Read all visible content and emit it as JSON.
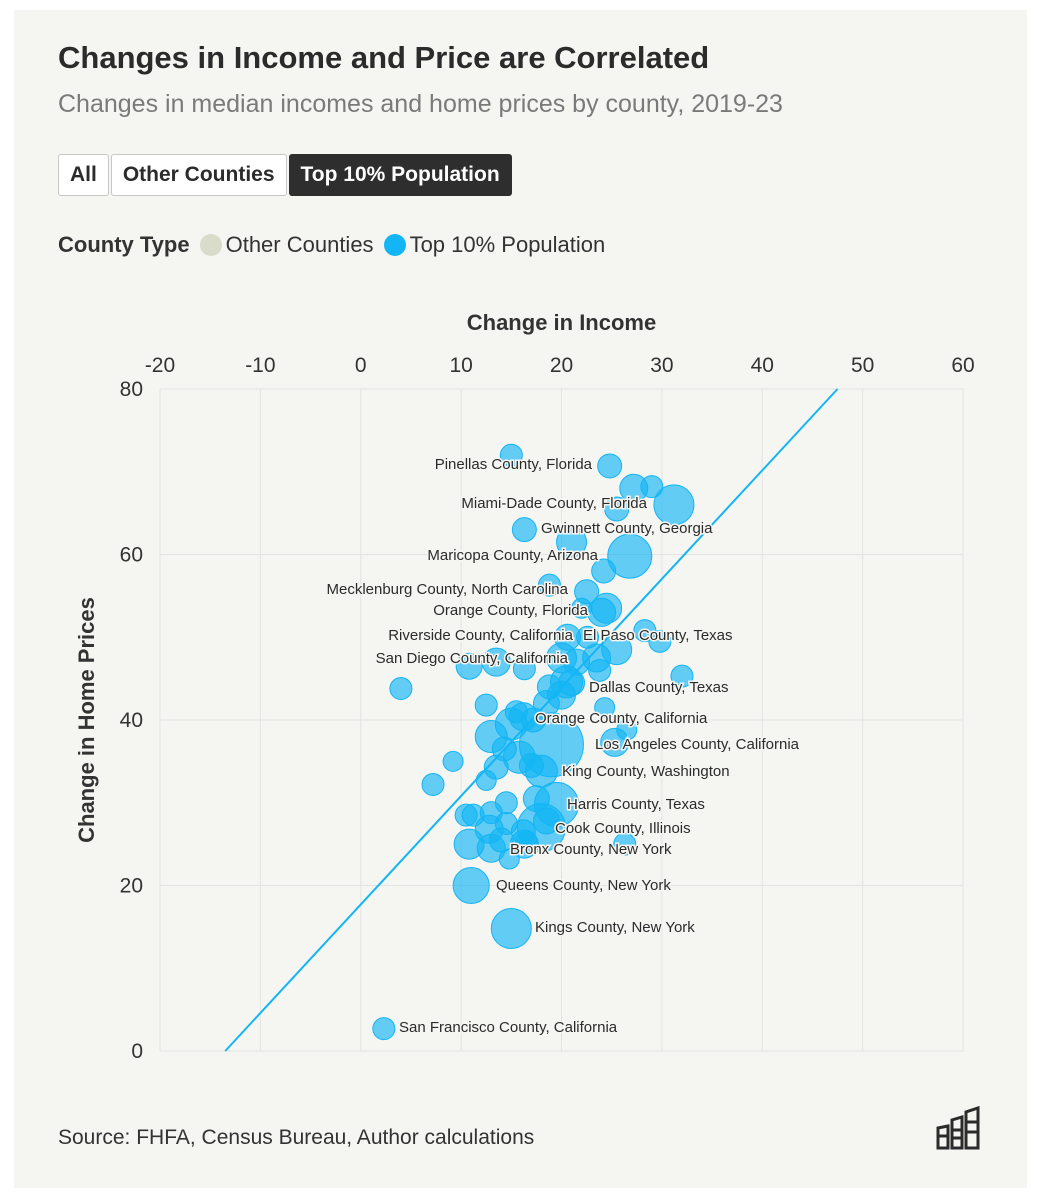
{
  "title": "Changes in Income and Price are Correlated",
  "subtitle": "Changes in median incomes and home prices by county, 2019-23",
  "buttons": [
    {
      "label": "All",
      "active": false
    },
    {
      "label": "Other Counties",
      "active": false
    },
    {
      "label": "Top 10% Population",
      "active": true
    }
  ],
  "legend": {
    "title": "County Type",
    "items": [
      {
        "label": "Other Counties",
        "color": "#d9dccb"
      },
      {
        "label": "Top 10% Population",
        "color": "#13b5f5"
      }
    ]
  },
  "source": "Source: FHFA, Census Bureau, Author calculations",
  "chart_data": {
    "type": "scatter",
    "title": "Changes in Income and Price are Correlated",
    "xlabel": "Change in Income",
    "ylabel": "Change in Home Prices",
    "xlim": [
      -20,
      60
    ],
    "ylim": [
      0,
      80
    ],
    "xticks": [
      -20,
      -10,
      0,
      10,
      20,
      30,
      40,
      50,
      60
    ],
    "yticks": [
      0,
      20,
      40,
      60,
      80
    ],
    "x_axis_position": "top",
    "grid": true,
    "point_color": "#13b5f5",
    "trend_line": {
      "from": [
        -13.5,
        0
      ],
      "to": [
        47.5,
        80
      ]
    },
    "labeled_points": [
      {
        "name": "Pinellas County, Florida",
        "x": 24.8,
        "y": 70.7,
        "size": 12
      },
      {
        "name": "Miami-Dade County, Florida",
        "x": 27.2,
        "y": 68.0,
        "size": 14
      },
      {
        "name": "Gwinnett County, Georgia",
        "x": 16.3,
        "y": 63.0,
        "size": 12
      },
      {
        "name": "Maricopa County, Arizona",
        "x": 26.8,
        "y": 59.8,
        "size": 22
      },
      {
        "name": "Mecklenburg County, North Carolina",
        "x": 18.8,
        "y": 56.3,
        "size": 11
      },
      {
        "name": "Orange County, Florida",
        "x": 24.0,
        "y": 53.0,
        "size": 14
      },
      {
        "name": "Riverside County, California",
        "x": 20.6,
        "y": 50.0,
        "size": 13
      },
      {
        "name": "El Paso County, Texas",
        "x": 22.6,
        "y": 50.0,
        "size": 11
      },
      {
        "name": "San Diego County, California",
        "x": 20.0,
        "y": 47.5,
        "size": 15
      },
      {
        "name": "Dallas County, Texas",
        "x": 20.5,
        "y": 44.6,
        "size": 16
      },
      {
        "name": "Orange County, California",
        "x": 16.2,
        "y": 40.4,
        "size": 14
      },
      {
        "name": "Los Angeles County, California",
        "x": 19.0,
        "y": 37.0,
        "size": 32
      },
      {
        "name": "King County, Washington",
        "x": 18.0,
        "y": 33.8,
        "size": 16
      },
      {
        "name": "Harris County, Texas",
        "x": 19.5,
        "y": 29.8,
        "size": 22
      },
      {
        "name": "Cook County, Illinois",
        "x": 18.0,
        "y": 27.0,
        "size": 24
      },
      {
        "name": "Bronx County, New York",
        "x": 16.3,
        "y": 25.0,
        "size": 14
      },
      {
        "name": "Queens County, New York",
        "x": 11.0,
        "y": 20.0,
        "size": 18
      },
      {
        "name": "Kings County, New York",
        "x": 15.0,
        "y": 14.8,
        "size": 20
      },
      {
        "name": "San Francisco County, California",
        "x": 2.3,
        "y": 2.7,
        "size": 11
      }
    ],
    "points": [
      {
        "x": 15.0,
        "y": 72.0,
        "size": 11
      },
      {
        "x": 29.0,
        "y": 68.2,
        "size": 11
      },
      {
        "x": 31.2,
        "y": 66.0,
        "size": 20
      },
      {
        "x": 25.5,
        "y": 65.5,
        "size": 12
      },
      {
        "x": 21.0,
        "y": 61.5,
        "size": 15
      },
      {
        "x": 24.2,
        "y": 58.0,
        "size": 12
      },
      {
        "x": 22.5,
        "y": 55.5,
        "size": 12
      },
      {
        "x": 22.0,
        "y": 53.5,
        "size": 10
      },
      {
        "x": 24.5,
        "y": 53.5,
        "size": 15
      },
      {
        "x": 28.3,
        "y": 50.8,
        "size": 11
      },
      {
        "x": 29.8,
        "y": 49.5,
        "size": 11
      },
      {
        "x": 25.5,
        "y": 48.5,
        "size": 15
      },
      {
        "x": 23.5,
        "y": 47.5,
        "size": 14
      },
      {
        "x": 21.5,
        "y": 47.0,
        "size": 13
      },
      {
        "x": 13.5,
        "y": 47.0,
        "size": 14
      },
      {
        "x": 10.8,
        "y": 46.5,
        "size": 13
      },
      {
        "x": 16.3,
        "y": 46.2,
        "size": 11
      },
      {
        "x": 23.8,
        "y": 46.0,
        "size": 11
      },
      {
        "x": 32.0,
        "y": 45.3,
        "size": 11
      },
      {
        "x": 18.8,
        "y": 44.0,
        "size": 12
      },
      {
        "x": 4.0,
        "y": 43.8,
        "size": 11
      },
      {
        "x": 20.0,
        "y": 43.0,
        "size": 14
      },
      {
        "x": 18.5,
        "y": 42.0,
        "size": 13
      },
      {
        "x": 24.3,
        "y": 41.5,
        "size": 10
      },
      {
        "x": 12.5,
        "y": 41.8,
        "size": 11
      },
      {
        "x": 15.5,
        "y": 41.0,
        "size": 11
      },
      {
        "x": 17.2,
        "y": 40.0,
        "size": 12
      },
      {
        "x": 26.5,
        "y": 38.8,
        "size": 10
      },
      {
        "x": 15.0,
        "y": 39.5,
        "size": 16
      },
      {
        "x": 13.0,
        "y": 38.0,
        "size": 16
      },
      {
        "x": 25.3,
        "y": 37.3,
        "size": 14
      },
      {
        "x": 14.3,
        "y": 36.5,
        "size": 12
      },
      {
        "x": 15.8,
        "y": 35.5,
        "size": 16
      },
      {
        "x": 9.2,
        "y": 35.0,
        "size": 10
      },
      {
        "x": 13.5,
        "y": 34.3,
        "size": 12
      },
      {
        "x": 17.0,
        "y": 34.5,
        "size": 12
      },
      {
        "x": 12.5,
        "y": 32.7,
        "size": 10
      },
      {
        "x": 7.2,
        "y": 32.2,
        "size": 11
      },
      {
        "x": 14.5,
        "y": 30.0,
        "size": 11
      },
      {
        "x": 17.5,
        "y": 30.5,
        "size": 13
      },
      {
        "x": 13.0,
        "y": 28.8,
        "size": 11
      },
      {
        "x": 10.5,
        "y": 28.5,
        "size": 11
      },
      {
        "x": 11.2,
        "y": 28.5,
        "size": 11
      },
      {
        "x": 14.5,
        "y": 27.5,
        "size": 11
      },
      {
        "x": 18.5,
        "y": 27.8,
        "size": 13
      },
      {
        "x": 12.8,
        "y": 26.8,
        "size": 14
      },
      {
        "x": 16.2,
        "y": 26.5,
        "size": 12
      },
      {
        "x": 14.0,
        "y": 25.5,
        "size": 12
      },
      {
        "x": 10.8,
        "y": 25.0,
        "size": 15
      },
      {
        "x": 26.3,
        "y": 25.0,
        "size": 11
      },
      {
        "x": 13.0,
        "y": 24.5,
        "size": 14
      },
      {
        "x": 14.8,
        "y": 23.2,
        "size": 10
      },
      {
        "x": 16.5,
        "y": 25.2,
        "size": 11
      },
      {
        "x": 21.0,
        "y": 44.5,
        "size": 13
      }
    ]
  }
}
